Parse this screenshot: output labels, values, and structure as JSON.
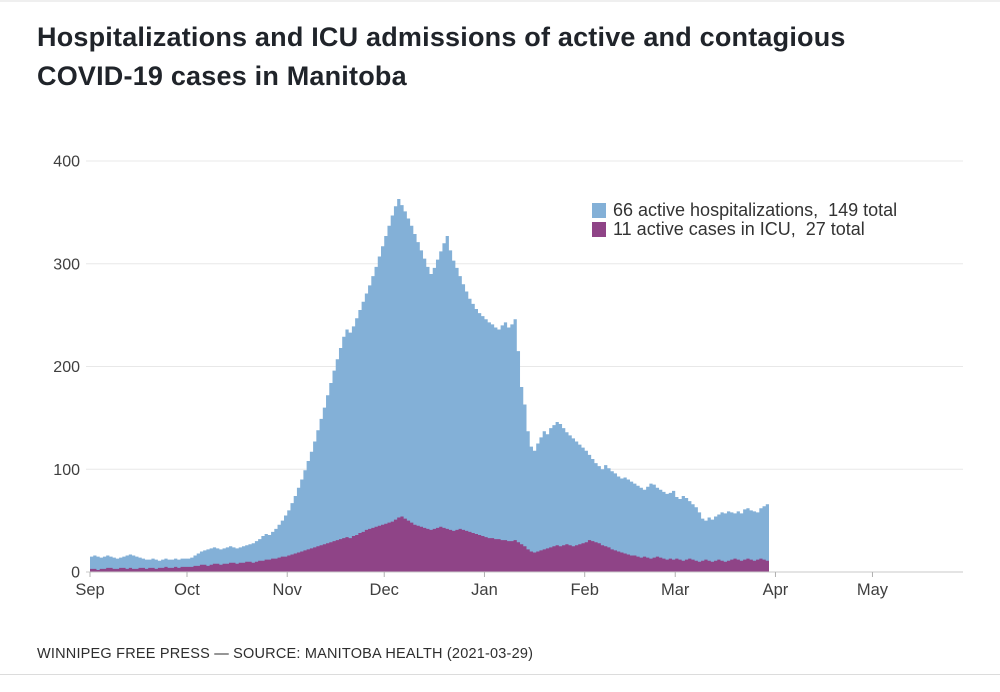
{
  "title": "Hospitalizations and ICU admissions of active and contagious COVID-19 cases in Manitoba",
  "legend": {
    "hospitalizations": {
      "label": "66 active hospitalizations,  149 total",
      "color": "#83b0d7"
    },
    "icu": {
      "label": "11 active cases in ICU,  27 total",
      "color": "#8f4487"
    }
  },
  "footer": {
    "source_line": "WINNIPEG FREE PRESS — SOURCE: MANITOBA HEALTH (2021-03-29)"
  },
  "chart_data": {
    "type": "area",
    "subtype": "daily stacked-overlay step area (ICU drawn over hospitalizations)",
    "title": "Hospitalizations and ICU admissions of active and contagious COVID-19 cases in Manitoba",
    "ylim": [
      0,
      400
    ],
    "y_ticks": [
      0,
      100,
      200,
      300,
      400
    ],
    "grid": "horizontal only",
    "legend_position": "top-right inside plot",
    "x_axis_months": [
      {
        "label": "Sep",
        "day": 0
      },
      {
        "label": "Oct",
        "day": 30
      },
      {
        "label": "Nov",
        "day": 61
      },
      {
        "label": "Dec",
        "day": 91
      },
      {
        "label": "Jan",
        "day": 122
      },
      {
        "label": "Feb",
        "day": 153
      },
      {
        "label": "Mar",
        "day": 181
      },
      {
        "label": "Apr",
        "day": 212
      },
      {
        "label": "May",
        "day": 242
      }
    ],
    "x_domain_days": 270,
    "series": [
      {
        "name": "active hospitalizations",
        "color": "#83b0d7",
        "current": 66,
        "total": 149,
        "values": [
          15,
          16,
          15,
          14,
          15,
          16,
          15,
          14,
          13,
          14,
          15,
          16,
          17,
          16,
          15,
          14,
          13,
          12,
          12,
          13,
          12,
          11,
          12,
          13,
          12,
          12,
          13,
          12,
          13,
          13,
          13,
          14,
          16,
          18,
          20,
          21,
          22,
          23,
          24,
          23,
          22,
          23,
          24,
          25,
          24,
          23,
          24,
          25,
          26,
          27,
          28,
          30,
          32,
          35,
          37,
          36,
          39,
          42,
          46,
          50,
          55,
          60,
          67,
          74,
          82,
          90,
          99,
          108,
          117,
          127,
          138,
          149,
          160,
          172,
          184,
          196,
          207,
          218,
          229,
          236,
          233,
          239,
          247,
          255,
          263,
          271,
          279,
          288,
          297,
          307,
          317,
          327,
          337,
          347,
          356,
          363,
          357,
          351,
          344,
          337,
          329,
          321,
          313,
          305,
          297,
          290,
          296,
          304,
          312,
          320,
          327,
          313,
          303,
          296,
          288,
          280,
          273,
          266,
          261,
          256,
          252,
          249,
          246,
          243,
          241,
          238,
          236,
          240,
          243,
          238,
          241,
          246,
          215,
          180,
          163,
          137,
          122,
          118,
          125,
          131,
          137,
          134,
          140,
          143,
          146,
          144,
          140,
          136,
          133,
          130,
          127,
          124,
          121,
          118,
          114,
          110,
          106,
          103,
          100,
          104,
          101,
          98,
          96,
          93,
          91,
          92,
          90,
          88,
          86,
          84,
          82,
          80,
          83,
          86,
          85,
          82,
          80,
          78,
          76,
          77,
          79,
          73,
          71,
          74,
          72,
          69,
          66,
          63,
          58,
          52,
          50,
          53,
          51,
          54,
          56,
          58,
          57,
          59,
          58,
          57,
          59,
          57,
          61,
          62,
          60,
          59,
          58,
          62,
          64,
          66
        ]
      },
      {
        "name": "active cases in ICU",
        "color": "#8f4487",
        "current": 11,
        "total": 27,
        "values": [
          3,
          3,
          2,
          3,
          3,
          4,
          4,
          3,
          3,
          4,
          4,
          3,
          4,
          3,
          3,
          4,
          4,
          3,
          4,
          4,
          3,
          4,
          4,
          5,
          4,
          4,
          5,
          4,
          5,
          5,
          5,
          5,
          6,
          6,
          7,
          7,
          6,
          7,
          8,
          8,
          7,
          8,
          8,
          9,
          9,
          8,
          9,
          9,
          10,
          10,
          9,
          10,
          11,
          11,
          12,
          12,
          13,
          13,
          14,
          15,
          15,
          16,
          17,
          18,
          19,
          20,
          21,
          22,
          23,
          24,
          25,
          26,
          27,
          28,
          29,
          30,
          31,
          32,
          33,
          34,
          33,
          35,
          36,
          38,
          39,
          41,
          42,
          43,
          44,
          45,
          46,
          47,
          48,
          49,
          51,
          53,
          54,
          52,
          50,
          48,
          46,
          45,
          44,
          43,
          42,
          41,
          42,
          43,
          44,
          43,
          42,
          41,
          40,
          41,
          42,
          41,
          40,
          39,
          38,
          37,
          36,
          35,
          34,
          33,
          33,
          32,
          32,
          31,
          31,
          30,
          30,
          31,
          29,
          27,
          25,
          22,
          20,
          19,
          20,
          21,
          22,
          23,
          24,
          25,
          26,
          25,
          26,
          27,
          26,
          25,
          26,
          27,
          28,
          29,
          31,
          30,
          29,
          28,
          26,
          25,
          24,
          22,
          21,
          20,
          19,
          18,
          17,
          16,
          16,
          15,
          14,
          15,
          14,
          13,
          14,
          15,
          14,
          13,
          12,
          13,
          12,
          13,
          12,
          11,
          12,
          13,
          12,
          11,
          10,
          11,
          12,
          11,
          10,
          11,
          12,
          11,
          10,
          11,
          12,
          13,
          12,
          11,
          12,
          13,
          12,
          11,
          12,
          13,
          12,
          11
        ]
      }
    ],
    "colors": {
      "gridline": "#e8e8e8",
      "baseline": "#c8c8c8",
      "tick": "#b0b0b0",
      "axis_text": "#3f3f3f"
    }
  }
}
